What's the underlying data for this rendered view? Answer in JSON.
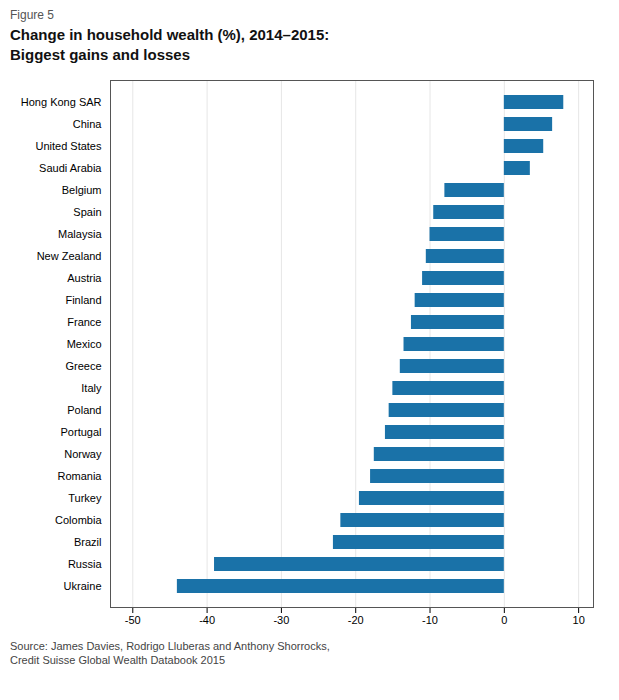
{
  "chart_data": {
    "type": "bar",
    "orientation": "horizontal",
    "subtitle": "Figure 5",
    "title": "Change in household wealth (%), 2014–2015:\nBiggest gains and losses",
    "source": "Source: James Davies, Rodrigo Lluberas and Anthony Shorrocks,\nCredit Suisse Global Wealth Databook 2015",
    "color": "#1a72a8",
    "xlim": [
      -53,
      12
    ],
    "xticks": [
      -50,
      -40,
      -30,
      -20,
      -10,
      0,
      10
    ],
    "grid": true,
    "categories": [
      "Hong Kong SAR",
      "China",
      "United States",
      "Saudi Arabia",
      "Belgium",
      "Spain",
      "Malaysia",
      "New Zealand",
      "Austria",
      "Finland",
      "France",
      "Mexico",
      "Greece",
      "Italy",
      "Poland",
      "Portugal",
      "Norway",
      "Romania",
      "Turkey",
      "Colombia",
      "Brazil",
      "Russia",
      "Ukraine"
    ],
    "values": [
      8.0,
      6.5,
      5.3,
      3.5,
      -8.0,
      -9.5,
      -10.0,
      -10.5,
      -11.0,
      -12.0,
      -12.5,
      -13.5,
      -14.0,
      -15.0,
      -15.5,
      -16.0,
      -17.5,
      -18.0,
      -19.5,
      -22.0,
      -23.0,
      -39.0,
      -44.0
    ]
  }
}
